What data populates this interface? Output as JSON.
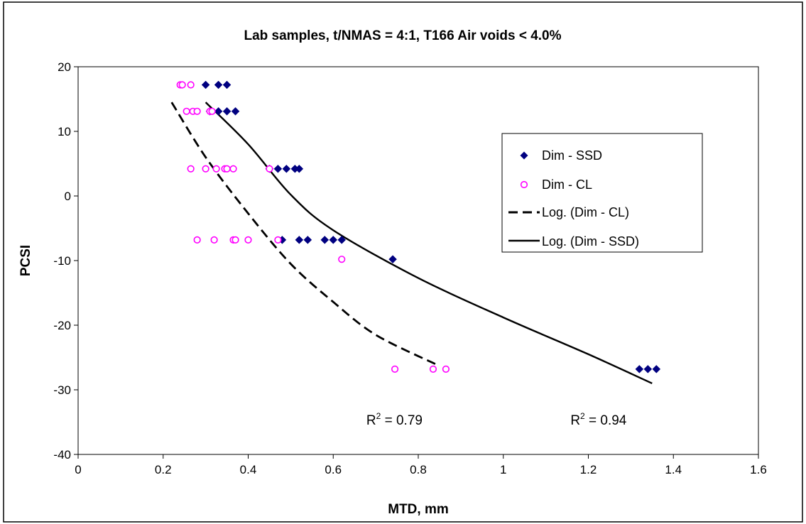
{
  "chart_data": {
    "type": "scatter",
    "title": "Lab samples,  t/NMAS = 4:1,  T166 Air voids < 4.0%",
    "xlabel": "MTD, mm",
    "ylabel": "PCSI",
    "xlim": [
      0,
      1.6
    ],
    "ylim": [
      -40,
      20
    ],
    "x_ticks": [
      "0",
      "0.2",
      "0.4",
      "0.6",
      "0.8",
      "1",
      "1.2",
      "1.4",
      "1.6"
    ],
    "y_ticks": [
      "20",
      "10",
      "0",
      "-10",
      "-20",
      "-30",
      "-40"
    ],
    "grid": false,
    "legend_position": "right",
    "plot_background": "#ffffff",
    "colors": {
      "ssd": "#000080",
      "cl": "#ff00ff",
      "trend": "#000000"
    },
    "series": [
      {
        "name": "Dim - SSD",
        "marker": "diamond",
        "points": [
          [
            0.3,
            17.2
          ],
          [
            0.33,
            17.2
          ],
          [
            0.35,
            17.2
          ],
          [
            0.31,
            13.1
          ],
          [
            0.33,
            13.1
          ],
          [
            0.35,
            13.1
          ],
          [
            0.37,
            13.1
          ],
          [
            0.45,
            4.2
          ],
          [
            0.47,
            4.2
          ],
          [
            0.49,
            4.2
          ],
          [
            0.51,
            4.2
          ],
          [
            0.52,
            4.2
          ],
          [
            0.48,
            -6.8
          ],
          [
            0.52,
            -6.8
          ],
          [
            0.54,
            -6.8
          ],
          [
            0.58,
            -6.8
          ],
          [
            0.6,
            -6.8
          ],
          [
            0.62,
            -6.8
          ],
          [
            0.74,
            -9.8
          ],
          [
            1.32,
            -26.8
          ],
          [
            1.34,
            -26.8
          ],
          [
            1.36,
            -26.8
          ]
        ]
      },
      {
        "name": "Dim - CL",
        "marker": "circle",
        "points": [
          [
            0.24,
            17.2
          ],
          [
            0.245,
            17.2
          ],
          [
            0.265,
            17.2
          ],
          [
            0.255,
            13.1
          ],
          [
            0.27,
            13.1
          ],
          [
            0.28,
            13.1
          ],
          [
            0.31,
            13.1
          ],
          [
            0.315,
            13.1
          ],
          [
            0.265,
            4.2
          ],
          [
            0.3,
            4.2
          ],
          [
            0.325,
            4.2
          ],
          [
            0.345,
            4.2
          ],
          [
            0.35,
            4.2
          ],
          [
            0.365,
            4.2
          ],
          [
            0.45,
            4.2
          ],
          [
            0.28,
            -6.8
          ],
          [
            0.32,
            -6.8
          ],
          [
            0.365,
            -6.8
          ],
          [
            0.37,
            -6.8
          ],
          [
            0.4,
            -6.8
          ],
          [
            0.47,
            -6.8
          ],
          [
            0.62,
            -9.8
          ],
          [
            0.745,
            -26.8
          ],
          [
            0.835,
            -26.8
          ],
          [
            0.865,
            -26.8
          ]
        ]
      }
    ],
    "trendlines": [
      {
        "name": "Log. (Dim - CL)",
        "style": "dashed",
        "x_range": [
          0.22,
          0.84
        ],
        "points": [
          [
            0.22,
            14.5
          ],
          [
            0.3,
            6.0
          ],
          [
            0.4,
            -2.7
          ],
          [
            0.5,
            -10.5
          ],
          [
            0.6,
            -16.4
          ],
          [
            0.7,
            -21.5
          ],
          [
            0.84,
            -26.0
          ]
        ]
      },
      {
        "name": "Log. (Dim - SSD)",
        "style": "solid",
        "x_range": [
          0.3,
          1.35
        ],
        "points": [
          [
            0.3,
            14.5
          ],
          [
            0.4,
            8.0
          ],
          [
            0.5,
            0.2
          ],
          [
            0.6,
            -5.3
          ],
          [
            0.8,
            -12.7
          ],
          [
            1.0,
            -18.8
          ],
          [
            1.2,
            -24.5
          ],
          [
            1.35,
            -29.0
          ]
        ]
      }
    ],
    "annotations": [
      {
        "text": "R",
        "superscript": "2",
        "suffix": " = 0.79",
        "x": 0.87,
        "y": -33.5
      },
      {
        "text": "R",
        "superscript": "2",
        "suffix": " = 0.94",
        "x": 1.35,
        "y": -33.5
      }
    ]
  }
}
